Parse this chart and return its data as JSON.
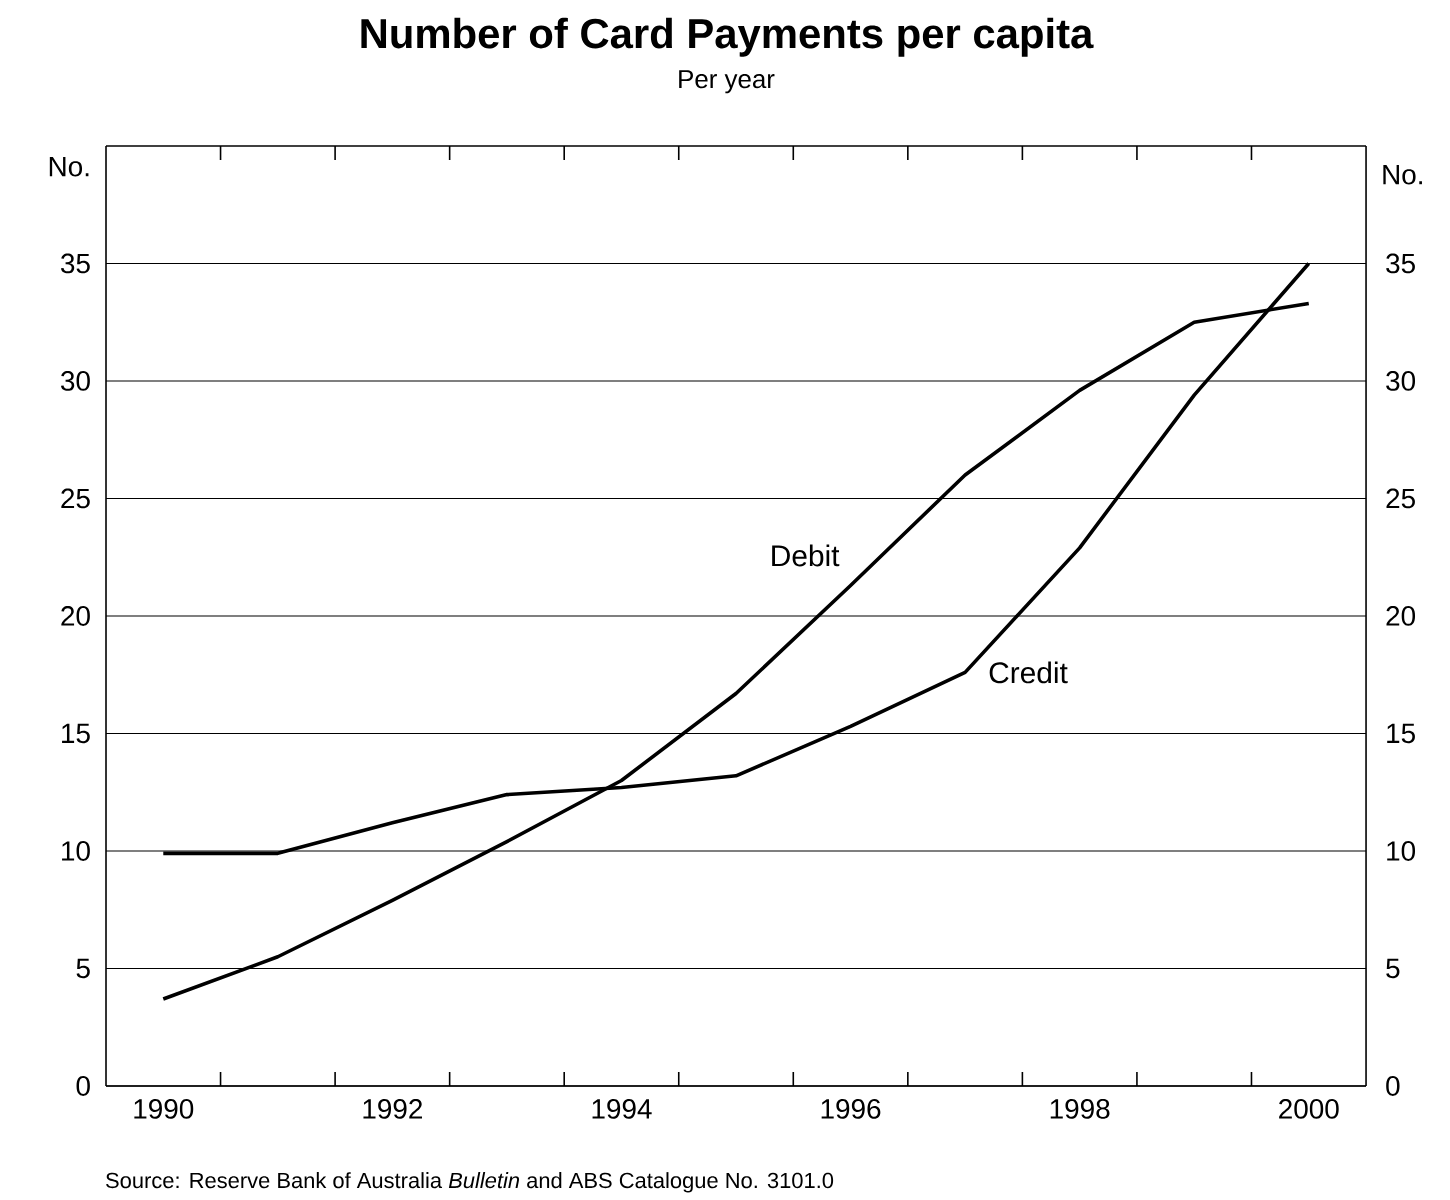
{
  "chart_data": {
    "type": "line",
    "title": "Number of Card Payments per capita",
    "subtitle": "Per year",
    "ylabel": "No.",
    "y2label": "No.",
    "x": [
      1990,
      1991,
      1992,
      1993,
      1994,
      1995,
      1996,
      1997,
      1998,
      1999,
      2000
    ],
    "series": [
      {
        "name": "Debit",
        "color": "#000000",
        "values": [
          3.7,
          5.5,
          7.9,
          10.4,
          13.0,
          16.7,
          21.3,
          26.0,
          29.6,
          32.5,
          33.3
        ]
      },
      {
        "name": "Credit",
        "color": "#000000",
        "values": [
          9.9,
          9.9,
          11.2,
          12.4,
          12.7,
          13.2,
          15.3,
          17.6,
          22.9,
          29.4,
          35.0
        ]
      }
    ],
    "xlim": [
      1989.5,
      2000.5
    ],
    "xticks": [
      1990,
      1992,
      1994,
      1996,
      1998,
      2000,
      {
        "value": 1990.5,
        "label": null
      },
      {
        "value": 1991.5,
        "label": null
      },
      {
        "value": 1992.5,
        "label": null
      },
      {
        "value": 1993.5,
        "label": null
      },
      {
        "value": 1994.5,
        "label": null
      },
      {
        "value": 1995.5,
        "label": null
      },
      {
        "value": 1996.5,
        "label": null
      },
      {
        "value": 1997.5,
        "label": null
      },
      {
        "value": 1998.5,
        "label": null
      },
      {
        "value": 1999.5,
        "label": null
      }
    ],
    "ylim": [
      0,
      40
    ],
    "yticks": [
      0,
      5,
      10,
      15,
      20,
      25,
      30,
      35
    ],
    "y2lim": [
      0,
      40
    ],
    "y2ticks": [
      0,
      5,
      10,
      15,
      20,
      25,
      30,
      35
    ],
    "grid": "y",
    "legend": false,
    "marker": "none",
    "line_style": "solid",
    "annotations": [
      "Source:  Reserve Bank of Australia *Bulletin* and ABS Catalogue No. 3101.0"
    ]
  }
}
